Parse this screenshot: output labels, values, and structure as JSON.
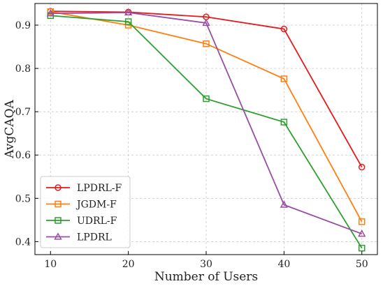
{
  "chart_data": {
    "type": "line",
    "xlabel": "Number of Users",
    "ylabel": "AvgCAQA",
    "x": [
      10,
      20,
      30,
      40,
      50
    ],
    "xticks": [
      "10",
      "20",
      "30",
      "40",
      "50"
    ],
    "yticks": [
      "0.4",
      "0.5",
      "0.6",
      "0.7",
      "0.8",
      "0.9"
    ],
    "xlim": [
      8,
      52
    ],
    "ylim": [
      0.37,
      0.95
    ],
    "grid": true,
    "legend_position": "lower-left",
    "series": [
      {
        "name": "LPDRL-F",
        "values": [
          0.932,
          0.93,
          0.919,
          0.891,
          0.572
        ],
        "color": "#e41a1c",
        "marker": "circle"
      },
      {
        "name": "JGDM-F",
        "values": [
          0.931,
          0.9,
          0.857,
          0.776,
          0.446
        ],
        "color": "#ff7f0e",
        "marker": "square"
      },
      {
        "name": "UDRL-F",
        "values": [
          0.922,
          0.908,
          0.73,
          0.676,
          0.385
        ],
        "color": "#2ca02c",
        "marker": "square"
      },
      {
        "name": "LPDRL",
        "values": [
          0.927,
          0.929,
          0.905,
          0.485,
          0.418
        ],
        "color": "#984ea3",
        "marker": "triangle"
      }
    ]
  }
}
